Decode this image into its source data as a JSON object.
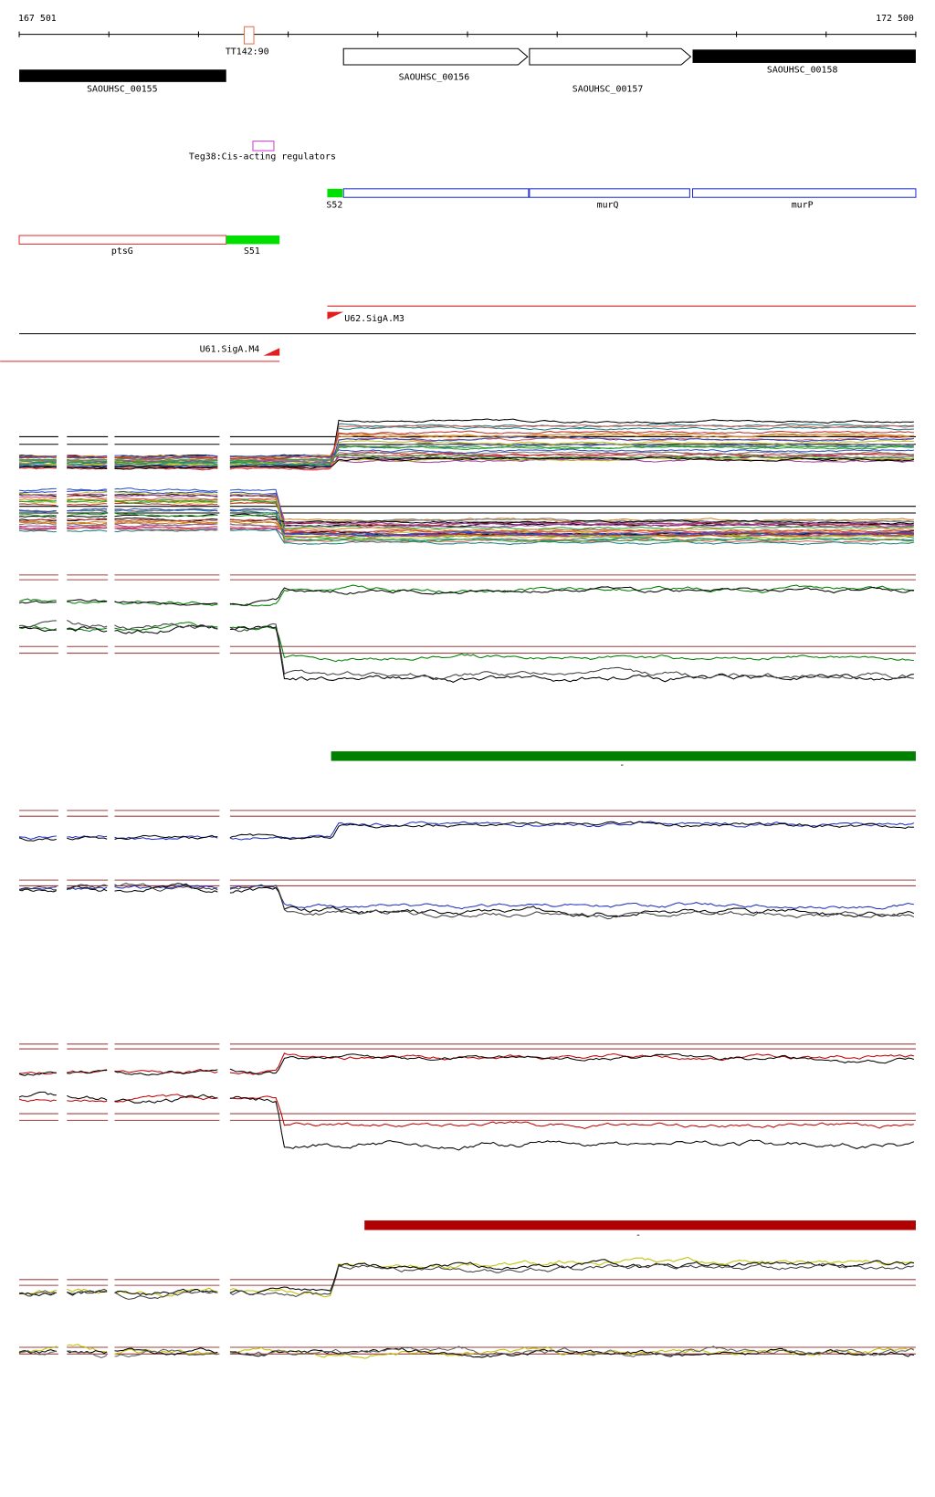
{
  "ruler": {
    "start": "167 501",
    "end": "172 500"
  },
  "features": {
    "tt142": "TT142:90",
    "g155": "SAOUHSC_00155",
    "g156": "SAOUHSC_00156",
    "g157": "SAOUHSC_00157",
    "g158": "SAOUHSC_00158",
    "teg38": "Teg38:Cis-acting regulators",
    "s52": "S52",
    "murQ": "murQ",
    "murP": "murP",
    "ptsG": "ptsG",
    "s51": "S51"
  },
  "promoters": {
    "u62": "U62.SigA.M3",
    "u61": "U61.SigA.M4"
  },
  "bar_labels": [
    "-",
    "-"
  ]
}
